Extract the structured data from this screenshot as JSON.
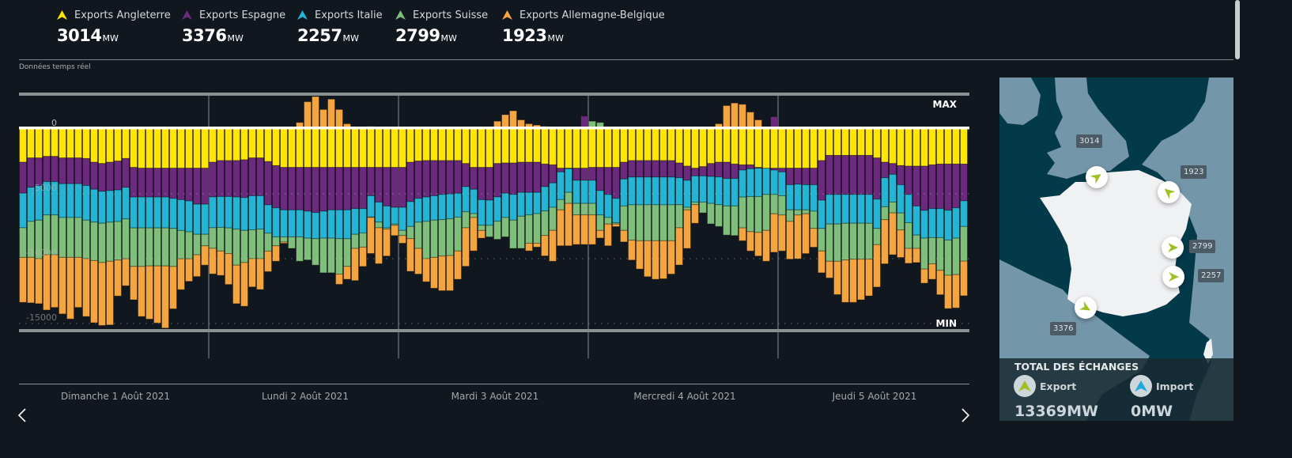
{
  "legend": [
    {
      "label": "Exports Angleterre",
      "value": "3014",
      "unit": "MW",
      "color": "#ffe600"
    },
    {
      "label": "Exports Espagne",
      "value": "3376",
      "unit": "MW",
      "color": "#6b2a7e"
    },
    {
      "label": "Exports Italie",
      "value": "2257",
      "unit": "MW",
      "color": "#23b5d3"
    },
    {
      "label": "Exports Suisse",
      "value": "2799",
      "unit": "MW",
      "color": "#7fbf7b"
    },
    {
      "label": "Exports Allemagne-Belgique",
      "value": "1923",
      "unit": "MW",
      "color": "#f5a540"
    }
  ],
  "realtime_label": "Données temps réel",
  "chart_data": {
    "type": "bar",
    "stacked": true,
    "x_unit": "hour",
    "x_start": "Dimanche 1 Août 2021 00:00",
    "ylim": [
      -15500,
      2700
    ],
    "yticks": [
      {
        "value": 0,
        "label": "0"
      },
      {
        "value": -5000,
        "label": "-5000"
      },
      {
        "value": -10000,
        "label": "-10000"
      },
      {
        "value": -15000,
        "label": "-15000"
      }
    ],
    "max_label": "MAX",
    "min_label": "MIN",
    "days": [
      "Dimanche 1 Août 2021",
      "Lundi 2 Août 2021",
      "Mardi 3 Août 2021",
      "Mercredi 4 Août 2021",
      "Jeudi 5 Août 2021"
    ],
    "series": [
      {
        "name": "Exports Angleterre",
        "color": "#ffe600",
        "values": [
          -2570,
          -2240,
          -2240,
          -2120,
          -2120,
          -2240,
          -2240,
          -2240,
          -2280,
          -2570,
          -2670,
          -2570,
          -2480,
          -2280,
          -2970,
          -3030,
          -3030,
          -3030,
          -3030,
          -3030,
          -3030,
          -3030,
          -3030,
          -3030,
          -2570,
          -2440,
          -2440,
          -2440,
          -2380,
          -2240,
          -2240,
          -2520,
          -2830,
          -2970,
          -2970,
          -2970,
          -2970,
          -2970,
          -2970,
          -2970,
          -2970,
          -2970,
          -2970,
          -2970,
          -2970,
          -2970,
          -2970,
          -2970,
          -2970,
          -2570,
          -2480,
          -2440,
          -2440,
          -2440,
          -2440,
          -2440,
          -2670,
          -2970,
          -2970,
          -2970,
          -2670,
          -2630,
          -2630,
          -2570,
          -2570,
          -2570,
          -2710,
          -2770,
          -3030,
          -3030,
          -3030,
          -3030,
          -2970,
          -2970,
          -2970,
          -2970,
          -2570,
          -2440,
          -2440,
          -2440,
          -2440,
          -2440,
          -2440,
          -2630,
          -2870,
          -3030,
          -2910,
          -2670,
          -2570,
          -2570,
          -2710,
          -2770,
          -2770,
          -2970,
          -3030,
          -3030,
          -3030,
          -3030,
          -3030,
          -3030,
          -3030,
          -2440,
          -2040,
          -2040,
          -2040,
          -2040,
          -2040,
          -2040,
          -2240,
          -2570,
          -2670,
          -2830,
          -2870,
          -2870,
          -2870,
          -2770,
          -2710,
          -2710,
          -2710,
          -2710
        ],
        "imports": []
      },
      {
        "name": "Exports Espagne",
        "color": "#6b2a7e",
        "values": [
          -2380,
          -2260,
          -2120,
          -1940,
          -1940,
          -1980,
          -1980,
          -1980,
          -2080,
          -2080,
          -2140,
          -2180,
          -2220,
          -2220,
          -2280,
          -2220,
          -2220,
          -2220,
          -2220,
          -2320,
          -2420,
          -2520,
          -2770,
          -2770,
          -2670,
          -2770,
          -2770,
          -2810,
          -2910,
          -2910,
          -2910,
          -3330,
          -3250,
          -3270,
          -3270,
          -3270,
          -3370,
          -3470,
          -3370,
          -3270,
          -3270,
          -3270,
          -3170,
          -3170,
          -2180,
          -2670,
          -2970,
          -3070,
          -3070,
          -3030,
          -2870,
          -2810,
          -2710,
          -2610,
          -2570,
          -2520,
          -1780,
          -1680,
          -2480,
          -2520,
          -2570,
          -2320,
          -2420,
          -2320,
          -2320,
          -2320,
          -1740,
          -1390,
          -280,
          -40,
          -930,
          -930,
          -990,
          -1780,
          -2080,
          -2380,
          -1290,
          -1270,
          -1270,
          -1270,
          -1270,
          -1270,
          -1270,
          -1130,
          -1090,
          -590,
          -710,
          -990,
          -1130,
          -1250,
          -1110,
          -400,
          -300,
          -60,
          0,
          -140,
          -280,
          -1270,
          -1230,
          -1270,
          -1270,
          -3050,
          -3010,
          -3010,
          -3010,
          -3010,
          -3010,
          -3010,
          -3170,
          -1190,
          -830,
          -1470,
          -2180,
          -3070,
          -3410,
          -3370,
          -3430,
          -3560,
          -3370,
          -2830
        ],
        "imports": [
          [
            71,
            1000
          ],
          [
            95,
            950
          ]
        ]
      },
      {
        "name": "Exports Italie",
        "color": "#23b5d3",
        "values": [
          -2670,
          -2630,
          -2670,
          -2570,
          -2570,
          -2610,
          -2610,
          -2610,
          -2670,
          -2530,
          -2460,
          -2440,
          -2440,
          -2440,
          -2380,
          -2380,
          -2380,
          -2380,
          -2380,
          -2320,
          -2380,
          -2380,
          -2320,
          -2320,
          -2380,
          -2380,
          -2420,
          -2480,
          -2530,
          -2630,
          -2570,
          -2180,
          -2240,
          -2080,
          -2080,
          -2080,
          -2080,
          -2020,
          -2080,
          -2180,
          -2220,
          -2220,
          -1980,
          -1880,
          -1640,
          -1540,
          -1680,
          -1290,
          -1780,
          -1920,
          -1840,
          -1880,
          -1880,
          -1940,
          -1920,
          -1840,
          -1940,
          -1880,
          -1980,
          -1940,
          -1880,
          -1880,
          -1980,
          -1840,
          -1740,
          -1640,
          -1880,
          -1880,
          -2140,
          -1820,
          -1780,
          -1780,
          -1780,
          -1880,
          -1780,
          -1880,
          -2080,
          -2140,
          -2140,
          -2140,
          -2140,
          -2140,
          -2140,
          -2080,
          -2080,
          -2020,
          -2020,
          -2080,
          -2140,
          -2120,
          -2120,
          -2080,
          -2140,
          -2180,
          -2020,
          -1880,
          -1840,
          -1940,
          -1980,
          -1940,
          -2040,
          -2180,
          -2280,
          -2280,
          -2220,
          -2220,
          -2220,
          -2220,
          -2260,
          -2240,
          -2140,
          -2180,
          -2180,
          -2240,
          -2140,
          -2240,
          -2240,
          -2300,
          -2340,
          -1980
        ],
        "imports": []
      },
      {
        "name": "Exports Suisse",
        "color": "#7fbf7b",
        "values": [
          -2280,
          -2770,
          -2970,
          -3070,
          -3070,
          -3070,
          -3070,
          -3070,
          -2970,
          -2970,
          -3030,
          -3010,
          -2970,
          -3070,
          -2970,
          -2970,
          -2930,
          -2930,
          -2930,
          -2930,
          -2180,
          -2080,
          -1580,
          -890,
          -1580,
          -1820,
          -1980,
          -2770,
          -2480,
          -2220,
          -2280,
          -1390,
          -690,
          -400,
          -890,
          -1880,
          -1680,
          -2040,
          -2670,
          -2670,
          -2730,
          -2140,
          -1090,
          -1090,
          -40,
          -440,
          -100,
          -100,
          -400,
          -930,
          -2020,
          -2870,
          -2870,
          -2810,
          -2830,
          -2610,
          -1230,
          -300,
          -400,
          -890,
          -1390,
          -1490,
          -2180,
          -2480,
          -2180,
          -2280,
          -1880,
          -1780,
          -790,
          -850,
          -890,
          -890,
          -890,
          -1190,
          -500,
          -100,
          -1880,
          -2730,
          -2770,
          -2770,
          -2770,
          -2770,
          -2770,
          -1780,
          -200,
          -200,
          -830,
          -1580,
          -1680,
          -2240,
          -2280,
          -2380,
          -2710,
          -2770,
          -2770,
          -1490,
          -1490,
          -890,
          -400,
          -300,
          -1330,
          -1740,
          -2870,
          -2870,
          -2830,
          -2770,
          -2770,
          -2770,
          -1250,
          -990,
          -830,
          -1310,
          -1980,
          -1030,
          -2380,
          -2020,
          -2520,
          -2710,
          -2810,
          -2670
        ],
        "imports": [
          [
            44,
            200
          ],
          [
            72,
            600
          ],
          [
            73,
            500
          ]
        ]
      },
      {
        "name": "Exports Allemagne-Belgique",
        "color": "#f5a540",
        "values": [
          -3470,
          -3510,
          -3470,
          -4260,
          -4060,
          -4360,
          -4750,
          -3860,
          -4460,
          -4790,
          -4850,
          -4910,
          -2770,
          -2080,
          -2570,
          -3860,
          -4100,
          -4400,
          -4790,
          -3270,
          -2380,
          -1740,
          -1680,
          -1490,
          -1980,
          -1880,
          -2380,
          -2970,
          -3370,
          -2180,
          -2380,
          -1580,
          -1190,
          -100,
          0,
          0,
          0,
          0,
          0,
          0,
          -790,
          -990,
          -2480,
          -1490,
          -2770,
          -2770,
          -2080,
          -790,
          -590,
          -2530,
          -1980,
          -1780,
          -2380,
          -2670,
          -2710,
          -2180,
          -2970,
          -2570,
          -590,
          0,
          0,
          0,
          0,
          0,
          -590,
          -300,
          -1580,
          -2380,
          -2770,
          -3270,
          -2280,
          -2280,
          -2280,
          -590,
          -1680,
          -200,
          -890,
          -1530,
          -2180,
          -2770,
          -2970,
          -2930,
          -2570,
          -2870,
          -2970,
          -1430,
          0,
          0,
          0,
          0,
          0,
          -990,
          -1490,
          -1820,
          -2380,
          -2970,
          -2770,
          -2910,
          -3370,
          -3070,
          -1450,
          -1680,
          -1290,
          -2570,
          -3270,
          -3330,
          -3130,
          -2830,
          -3270,
          -3410,
          -3230,
          -2120,
          -1150,
          -1090,
          -1090,
          -1190,
          -1880,
          -2570,
          -2570,
          -2670
        ],
        "imports": [
          [
            35,
            500
          ],
          [
            36,
            2100
          ],
          [
            37,
            2500
          ],
          [
            38,
            1500
          ],
          [
            39,
            2300
          ],
          [
            40,
            1500
          ],
          [
            41,
            400
          ],
          [
            60,
            600
          ],
          [
            61,
            1100
          ],
          [
            62,
            1400
          ],
          [
            63,
            700
          ],
          [
            64,
            400
          ],
          [
            65,
            300
          ],
          [
            66,
            200
          ],
          [
            88,
            400
          ],
          [
            89,
            1800
          ],
          [
            90,
            2000
          ],
          [
            91,
            1900
          ],
          [
            92,
            1300
          ],
          [
            93,
            700
          ]
        ]
      }
    ]
  },
  "map": {
    "labels": {
      "angleterre": "3014",
      "allemagne_belgique": "1923",
      "suisse": "2799",
      "italie": "2257",
      "espagne": "3376"
    },
    "arrow_color": "#9dc21f",
    "totals": {
      "title": "TOTAL DES ÉCHANGES",
      "export_label": "Export",
      "export_value": "13369MW",
      "export_color": "#9dc21f",
      "import_label": "Import",
      "import_value": "0MW",
      "import_color": "#1fa8d8"
    }
  },
  "nav": {
    "prev_icon": "chevron-left-icon",
    "next_icon": "chevron-right-icon"
  }
}
